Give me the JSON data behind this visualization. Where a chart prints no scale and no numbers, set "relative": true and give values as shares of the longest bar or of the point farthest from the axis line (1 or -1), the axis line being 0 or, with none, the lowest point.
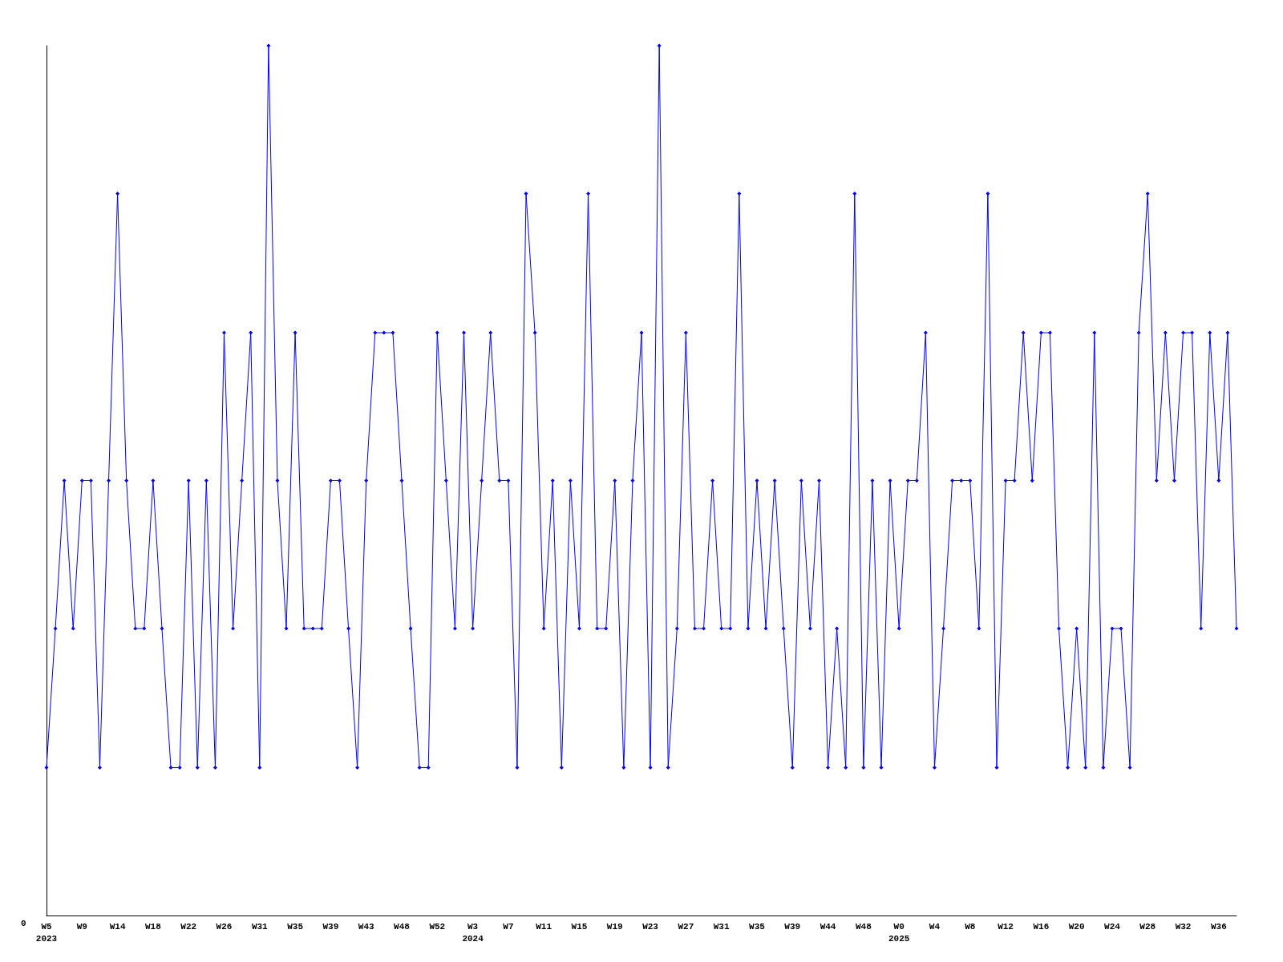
{
  "chart_data": {
    "type": "line",
    "relative": true,
    "marker": "diamond",
    "line_style": "solid",
    "annotations": [
      "0"
    ],
    "categories": [
      "W5\n2023",
      null,
      null,
      null,
      "W9",
      null,
      null,
      null,
      "W14",
      null,
      null,
      null,
      "W18",
      null,
      null,
      null,
      "W22",
      null,
      null,
      null,
      "W26",
      null,
      null,
      null,
      "W31",
      null,
      null,
      null,
      "W35",
      null,
      null,
      null,
      "W39",
      null,
      null,
      null,
      "W43",
      null,
      null,
      null,
      "W48",
      null,
      null,
      null,
      "W52",
      null,
      null,
      null,
      "W3\n2024",
      null,
      null,
      null,
      "W7",
      null,
      null,
      null,
      "W11",
      null,
      null,
      null,
      "W15",
      null,
      null,
      null,
      "W19",
      null,
      null,
      null,
      "W23",
      null,
      null,
      null,
      "W27",
      null,
      null,
      null,
      "W31",
      null,
      null,
      null,
      "W35",
      null,
      null,
      null,
      "W39",
      null,
      null,
      null,
      "W44",
      null,
      null,
      null,
      "W48",
      null,
      null,
      null,
      "W0\n2025",
      null,
      null,
      null,
      "W4",
      null,
      null,
      null,
      "W8",
      null,
      null,
      null,
      "W12",
      null,
      null,
      null,
      "W16",
      null,
      null,
      null,
      "W20",
      null,
      null,
      null,
      "W24",
      null,
      null,
      null,
      "W28",
      null,
      null,
      null,
      "W32",
      null,
      null,
      null,
      "W36",
      null,
      null
    ],
    "series": [
      {
        "color": "#0000ff",
        "values": [
          0.17,
          0.33,
          0.5,
          0.33,
          0.5,
          0.5,
          0.17,
          0.5,
          0.83,
          0.5,
          0.33,
          0.33,
          0.5,
          0.33,
          0.17,
          0.17,
          0.5,
          0.17,
          0.5,
          0.17,
          0.67,
          0.33,
          0.5,
          0.67,
          0.17,
          1,
          0.5,
          0.33,
          0.67,
          0.33,
          0.33,
          0.33,
          0.5,
          0.5,
          0.33,
          0.17,
          0.5,
          0.67,
          0.67,
          0.67,
          0.5,
          0.33,
          0.17,
          0.17,
          0.67,
          0.5,
          0.33,
          0.67,
          0.33,
          0.5,
          0.67,
          0.5,
          0.5,
          0.17,
          0.83,
          0.67,
          0.33,
          0.5,
          0.17,
          0.5,
          0.33,
          0.83,
          0.33,
          0.33,
          0.5,
          0.17,
          0.5,
          0.67,
          0.17,
          1,
          0.17,
          0.33,
          0.67,
          0.33,
          0.33,
          0.5,
          0.33,
          0.33,
          0.83,
          0.33,
          0.5,
          0.33,
          0.5,
          0.33,
          0.17,
          0.5,
          0.33,
          0.5,
          0.17,
          0.33,
          0.17,
          0.83,
          0.17,
          0.5,
          0.17,
          0.5,
          0.33,
          0.5,
          0.5,
          0.67,
          0.17,
          0.33,
          0.5,
          0.5,
          0.5,
          0.33,
          0.83,
          0.17,
          0.5,
          0.5,
          0.67,
          0.5,
          0.67,
          0.67,
          0.33,
          0.17,
          0.33,
          0.17,
          0.67,
          0.17,
          0.33,
          0.33,
          0.17,
          0.67,
          0.83,
          0.5,
          0.67,
          0.5,
          0.67,
          0.67,
          0.33,
          0.67,
          0.5,
          0.67,
          0.33
        ]
      }
    ]
  }
}
